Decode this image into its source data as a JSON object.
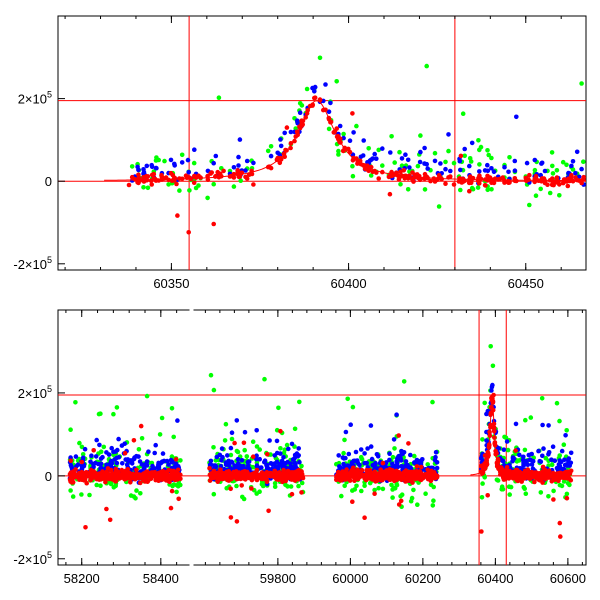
{
  "chart_data": [
    {
      "type": "scatter",
      "panel": "top",
      "x_ticks": [
        "60350",
        "60400",
        "60450"
      ],
      "x_tick_values": [
        60350,
        60400,
        60450
      ],
      "y_ticks": [
        {
          "base": "-2×10",
          "exp": "5",
          "value": -200000
        },
        {
          "base": "0",
          "exp": "",
          "value": 0
        },
        {
          "base": "2×10",
          "exp": "5",
          "value": 200000
        }
      ],
      "xlim": [
        60318,
        60467
      ],
      "ylim": [
        -215000,
        400000
      ],
      "ref_hlines": [
        0,
        195000
      ],
      "ref_vlines": [
        60355,
        60430
      ],
      "model_peak": {
        "x": 60391,
        "y": 195000,
        "fwhm": 13
      },
      "series": [
        {
          "color": "#0000ff",
          "role": "blue"
        },
        {
          "color": "#00ff00",
          "role": "green"
        },
        {
          "color": "#ff0000",
          "role": "red"
        }
      ],
      "grid": false
    },
    {
      "type": "scatter",
      "panel": "bottom",
      "x_ticks": [
        "58200",
        "58400",
        "59800",
        "60000",
        "60200",
        "60400",
        "60600"
      ],
      "segments": [
        {
          "xlim": [
            58140,
            58470
          ],
          "ticks": [
            58200,
            58400
          ]
        },
        {
          "xlim": [
            59570,
            60650
          ],
          "ticks": [
            59800,
            60000,
            60200,
            60400,
            60600
          ]
        }
      ],
      "y_ticks": [
        {
          "base": "-2×10",
          "exp": "5",
          "value": -200000
        },
        {
          "base": "0",
          "exp": "",
          "value": 0
        },
        {
          "base": "2×10",
          "exp": "5",
          "value": 200000
        }
      ],
      "ylim": [
        -215000,
        400000
      ],
      "ref_hlines": [
        0,
        195000
      ],
      "ref_vlines": [
        60355,
        60430
      ],
      "observation_seasons": [
        [
          58170,
          58450
        ],
        [
          59610,
          59870
        ],
        [
          59960,
          60240
        ],
        [
          60360,
          60610
        ]
      ],
      "model_peak": {
        "x": 60391,
        "y": 195000,
        "fwhm": 13
      },
      "series": [
        {
          "color": "#0000ff",
          "role": "blue"
        },
        {
          "color": "#00ff00",
          "role": "green"
        },
        {
          "color": "#ff0000",
          "role": "red"
        }
      ],
      "grid": false
    }
  ]
}
